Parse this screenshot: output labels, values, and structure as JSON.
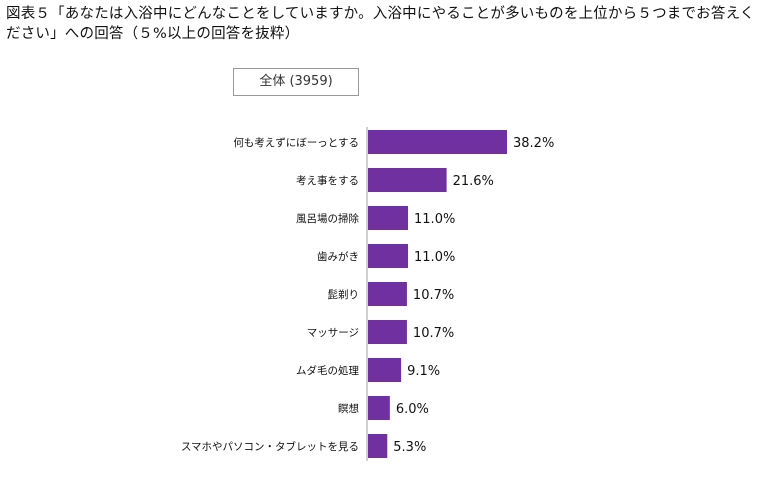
{
  "title": "図表５「あなたは入浴中にどんなことをしていますか。入浴中にやることが多いものを上位から５つまでお答えください」への回答（５%以上の回答を抜粋）",
  "chart_data": {
    "type": "bar",
    "orientation": "horizontal",
    "series_badge": "全体 (3959)",
    "categories": [
      "何も考えずにぼーっとする",
      "考え事をする",
      "風呂場の掃除",
      "歯みがき",
      "髭剃り",
      "マッサージ",
      "ムダ毛の処理",
      "瞑想",
      "スマホやパソコン・タブレットを見る"
    ],
    "values": [
      38.2,
      21.6,
      11.0,
      11.0,
      10.7,
      10.7,
      9.1,
      6.0,
      5.3
    ],
    "value_labels": [
      "38.2%",
      "21.6%",
      "11.0%",
      "11.0%",
      "10.7%",
      "10.7%",
      "9.1%",
      "6.0%",
      "5.3%"
    ],
    "bar_color": "#7030a0",
    "axis_line_color": "#a0a0a0",
    "grid": false,
    "legend": "none"
  }
}
